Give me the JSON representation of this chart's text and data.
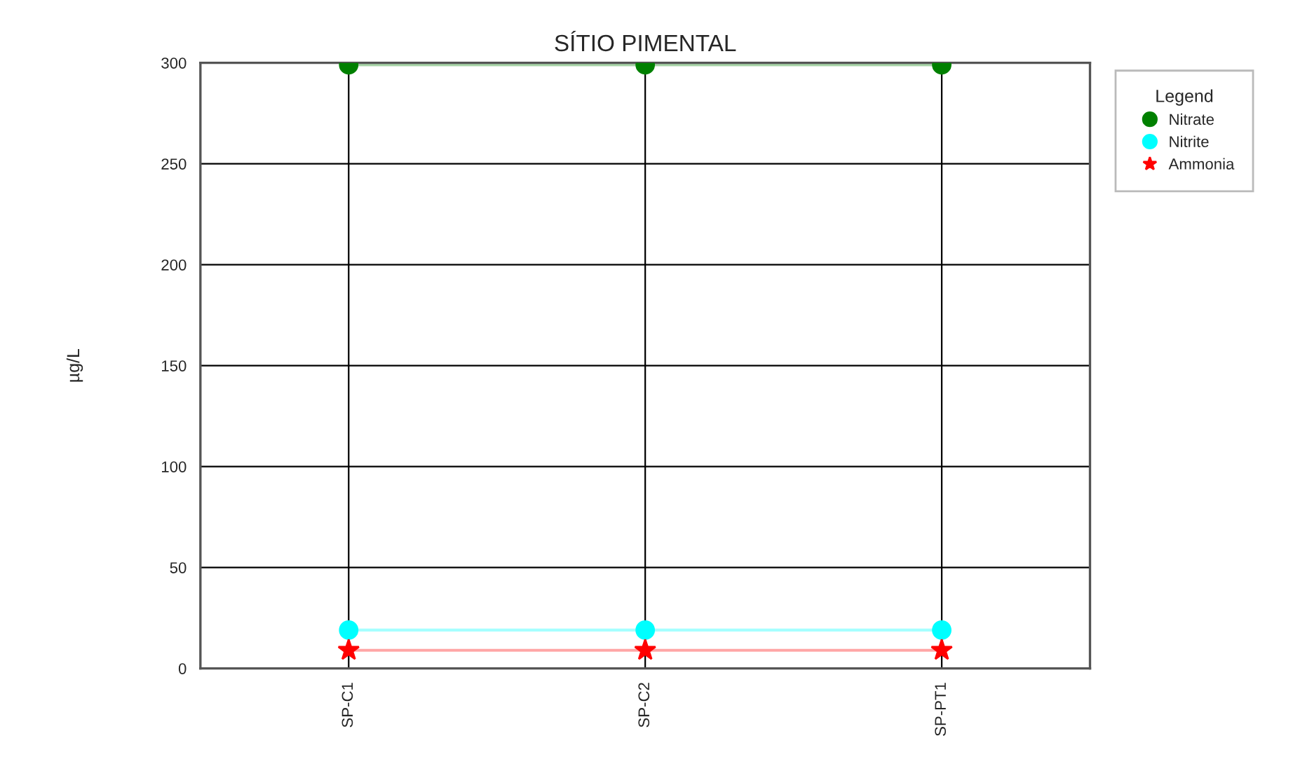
{
  "chart_data": {
    "type": "line",
    "title": "SÍTIO PIMENTAL",
    "ylabel": "µg/L",
    "legend_title": "Legend",
    "categories": [
      "SP-C1",
      "SP-C2",
      "SP-PT1"
    ],
    "series": [
      {
        "name": "Nitrate",
        "color": "#008000",
        "marker": "circle",
        "values": [
          299,
          299,
          299
        ]
      },
      {
        "name": "Nitrite",
        "color": "#00ffff",
        "marker": "circle",
        "values": [
          19,
          19,
          19
        ]
      },
      {
        "name": "Ammonia",
        "color": "#ff0000",
        "marker": "star",
        "values": [
          9,
          9,
          9
        ]
      }
    ],
    "ylim": [
      0,
      300
    ],
    "yticks": [
      0,
      50,
      100,
      150,
      200,
      250,
      300
    ],
    "grid": true,
    "legend": "right",
    "line_style": "solid"
  }
}
